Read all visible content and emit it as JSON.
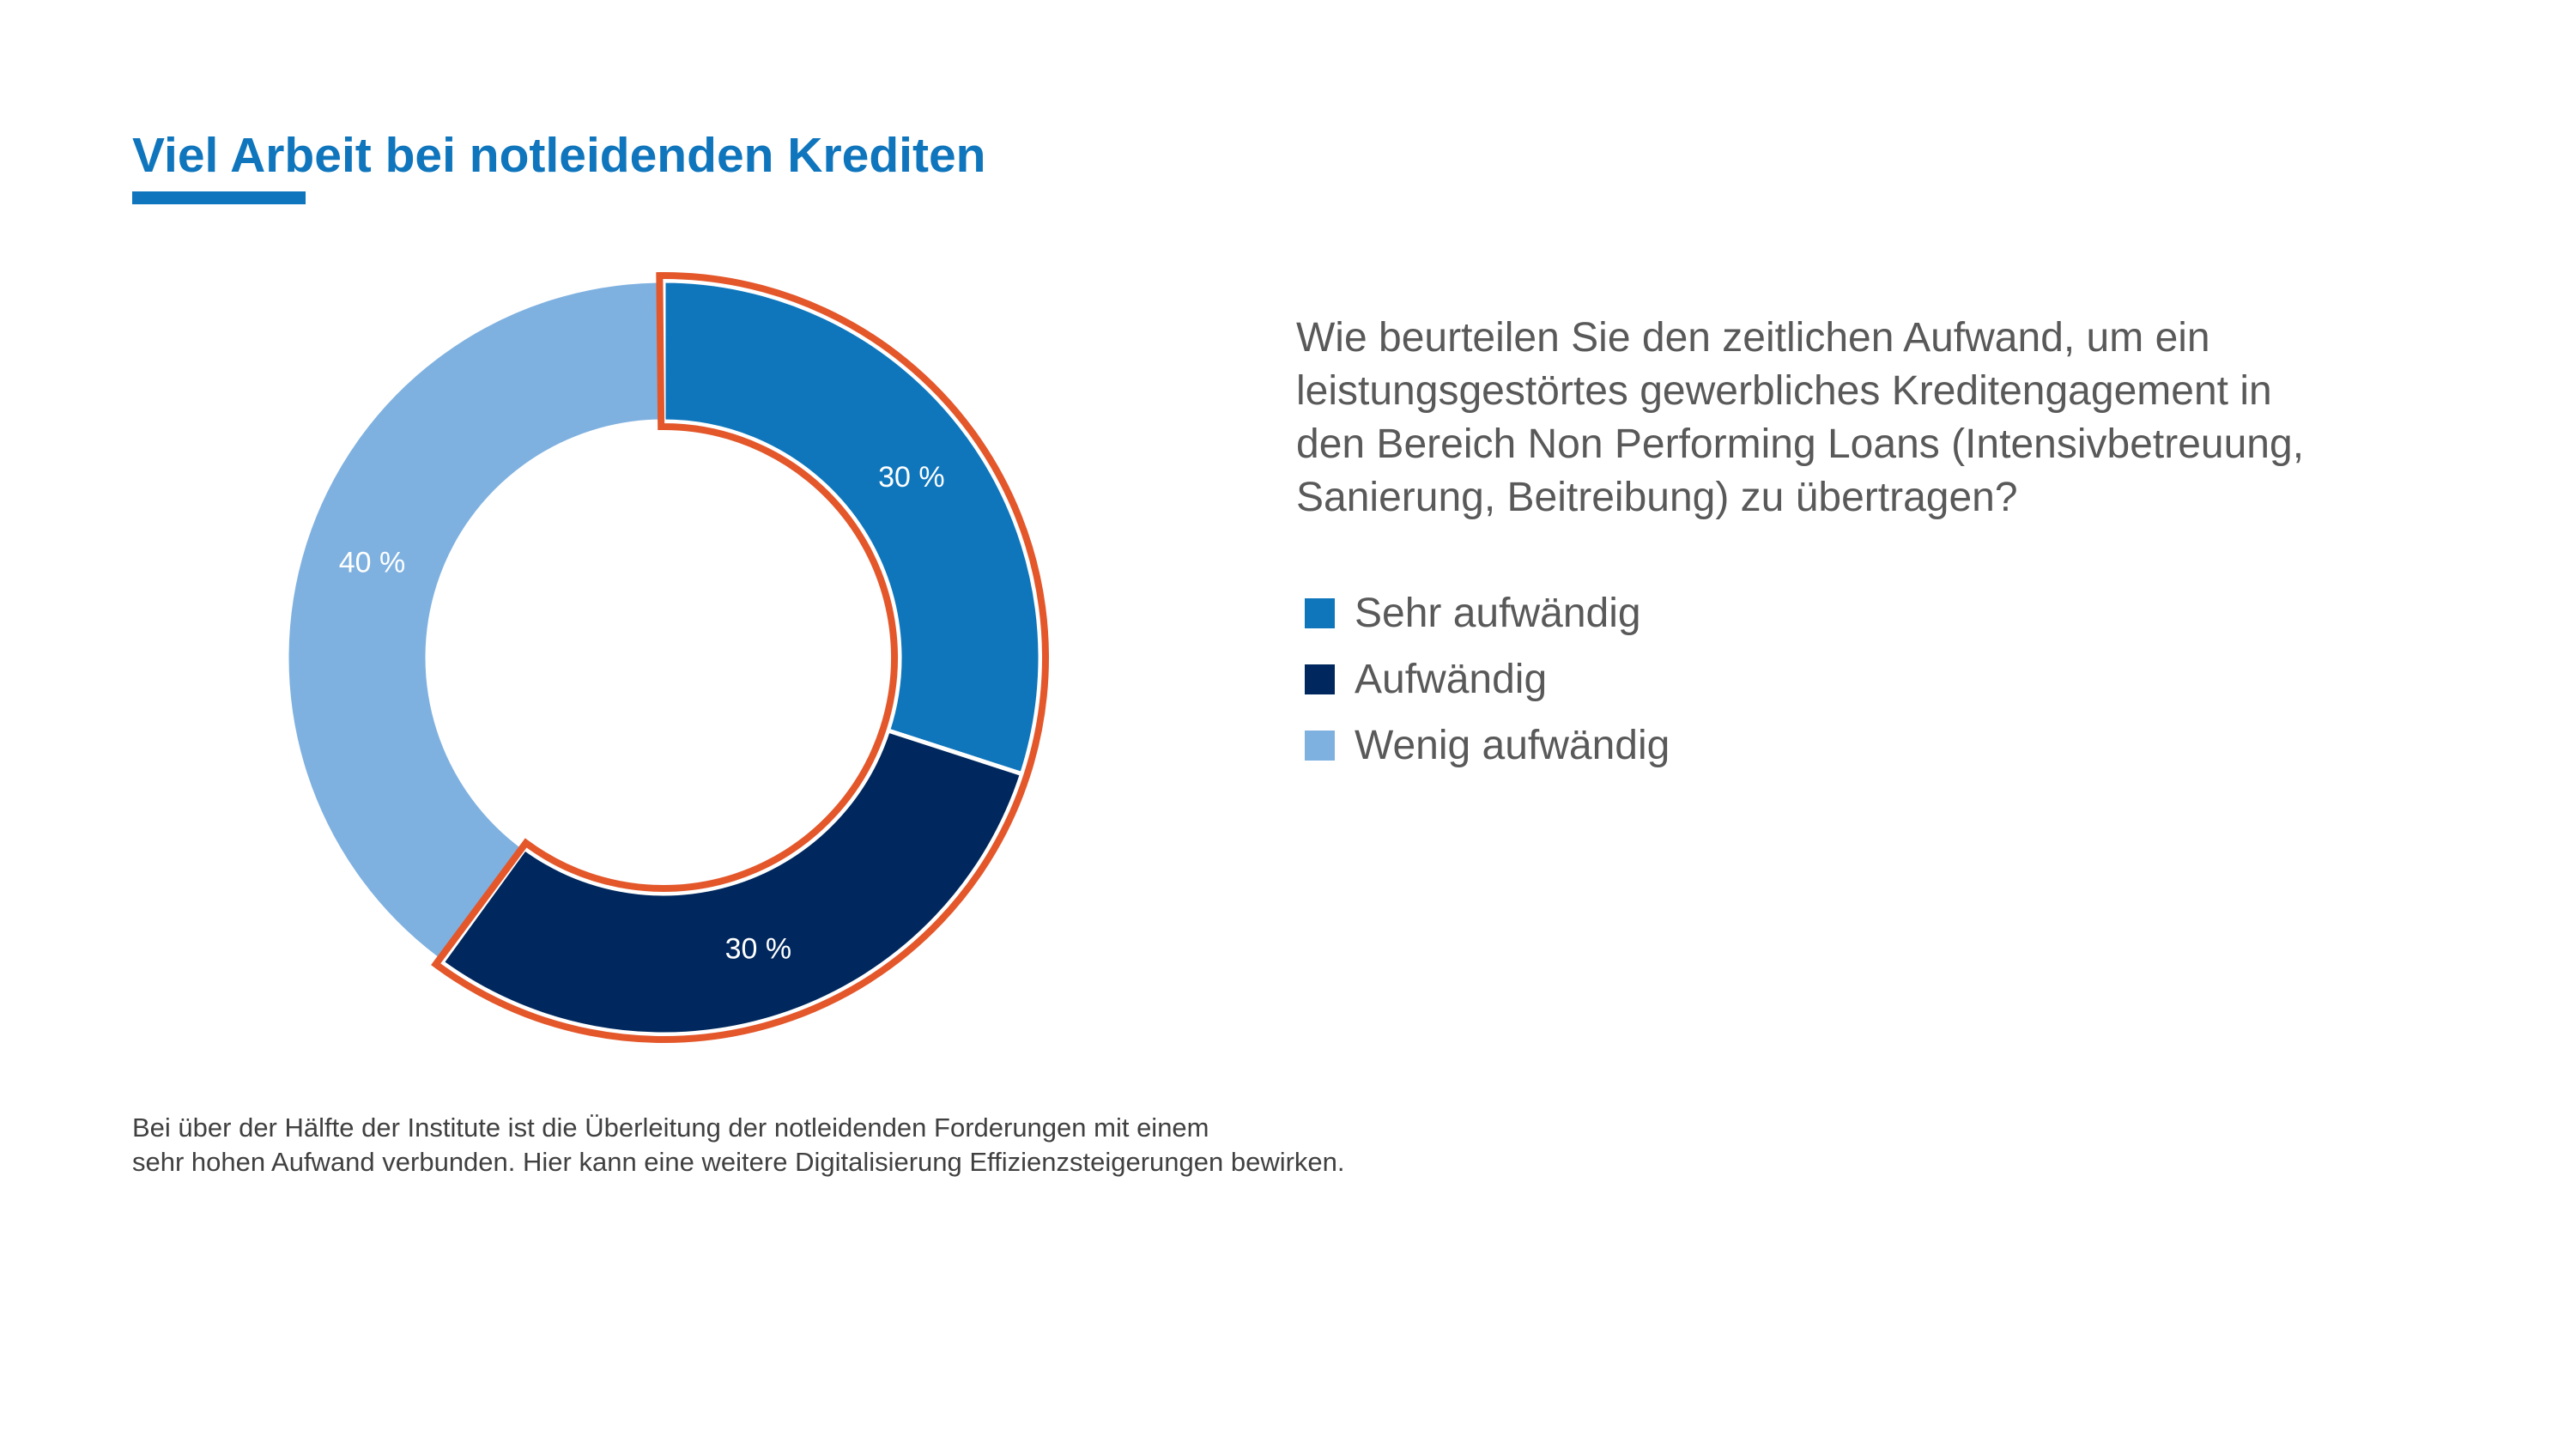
{
  "title": "Viel Arbeit bei notleidenden Krediten",
  "question": [
    "Wie beurteilen Sie den zeitlichen Aufwand, um ein",
    "leistungsgestörtes gewerbliches Kreditengagement in",
    "den Bereich Non Performing Loans (Intensivbetreuung,",
    "Sanierung, Beitreibung) zu übertragen?"
  ],
  "footnote": [
    "Bei über der Hälfte der Institute ist die Überleitung der notleidenden Forderungen mit einem",
    "sehr hohen Aufwand verbunden. Hier kann eine weitere Digitalisierung Effizienzsteigerungen bewirken."
  ],
  "colors": {
    "accent": "#0F75BC",
    "highlight_outline": "#E3572B",
    "text": "#595959"
  },
  "chart_data": {
    "type": "pie",
    "variant": "donut",
    "slices": [
      {
        "name": "Sehr aufwändig",
        "value": 30,
        "label": "30 %",
        "color": "#0F76BC",
        "highlighted": true
      },
      {
        "name": "Aufwändig",
        "value": 30,
        "label": "30 %",
        "color": "#00285E",
        "highlighted": true
      },
      {
        "name": "Wenig aufwändig",
        "value": 40,
        "label": "40 %",
        "color": "#7FB1E0",
        "highlighted": false
      }
    ],
    "legend": {
      "placement": "right"
    }
  }
}
